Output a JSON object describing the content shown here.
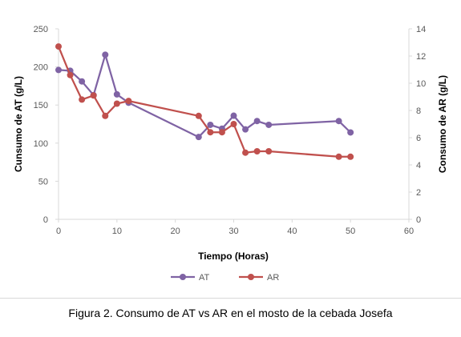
{
  "chart_data": {
    "type": "line",
    "xlabel": "Tiempo (Horas)",
    "ylabel_left": "Cunsumo de AT (g/L)",
    "ylabel_right": "Consumo de AR (g/L)",
    "xlim": [
      0,
      60
    ],
    "ylim_left": [
      0,
      250
    ],
    "ylim_right": [
      0,
      14
    ],
    "xticks": [
      0,
      10,
      20,
      30,
      40,
      50,
      60
    ],
    "yticks_left": [
      0,
      50,
      100,
      150,
      200,
      250
    ],
    "yticks_right": [
      0,
      2,
      4,
      6,
      8,
      10,
      12,
      14
    ],
    "grid": false,
    "legend_position": "bottom",
    "series": [
      {
        "name": "AT",
        "axis": "left",
        "color": "#7f63a4",
        "x": [
          0,
          2,
          4,
          6,
          8,
          10,
          12,
          24,
          26,
          28,
          30,
          32,
          34,
          36,
          48,
          50
        ],
        "y": [
          196,
          195,
          181,
          163,
          216,
          164,
          153,
          108,
          124,
          119,
          136,
          118,
          129,
          124,
          129,
          114
        ]
      },
      {
        "name": "AR",
        "axis": "right",
        "color": "#c0504d",
        "x": [
          0,
          2,
          4,
          6,
          8,
          10,
          12,
          24,
          26,
          28,
          30,
          32,
          34,
          36,
          48,
          50
        ],
        "y": [
          12.7,
          10.6,
          8.8,
          9.1,
          7.6,
          8.5,
          8.7,
          7.6,
          6.4,
          6.4,
          7.0,
          4.9,
          5.0,
          5.0,
          4.6,
          4.6
        ]
      }
    ]
  },
  "caption": "Figura 2. Consumo de AT vs AR en el mosto de la cebada Josefa"
}
